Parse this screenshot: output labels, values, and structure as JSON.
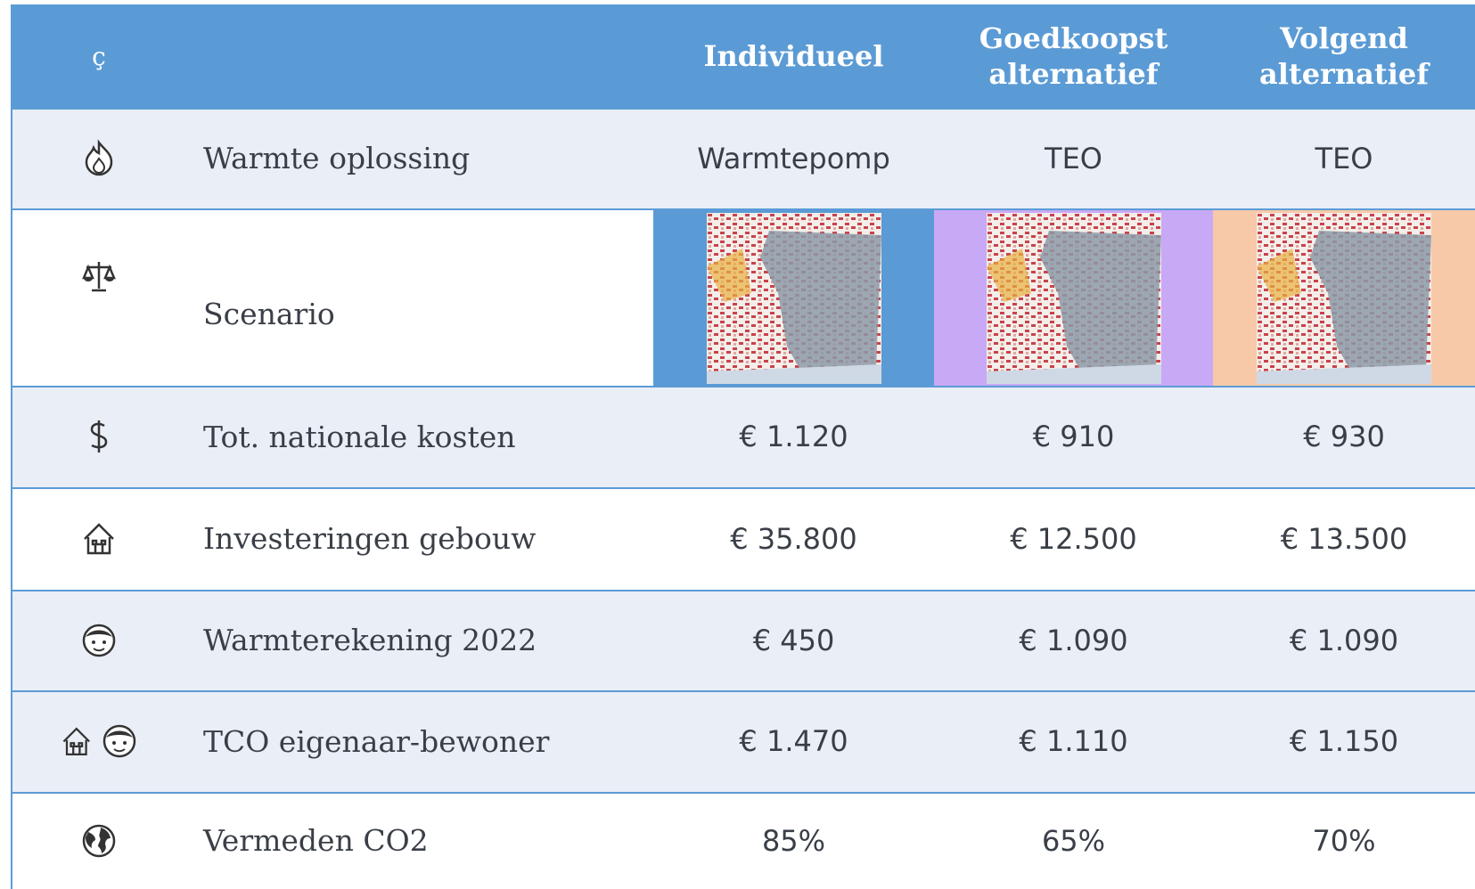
{
  "header": {
    "icon": "ç",
    "columns": [
      "Individueel",
      "Goedkoopst alternatief",
      "Volgend alternatief"
    ]
  },
  "rows": [
    {
      "label": "Warmte oplossing",
      "values": [
        "Warmtepomp",
        "TEO",
        "TEO"
      ]
    },
    {
      "label": "Scenario"
    },
    {
      "label": "Tot. nationale kosten",
      "values": [
        "€ 1.120",
        "€ 910",
        "€ 930"
      ]
    },
    {
      "label": "Investeringen gebouw",
      "values": [
        "€ 35.800",
        "€ 12.500",
        "€ 13.500"
      ]
    },
    {
      "label": "Warmterekening 2022",
      "values": [
        "€ 450",
        "€ 1.090",
        "€ 1.090"
      ]
    },
    {
      "label": "TCO eigenaar-bewoner",
      "values": [
        "€ 1.470",
        "€ 1.110",
        "€ 1.150"
      ]
    },
    {
      "label": "Vermeden CO2",
      "values": [
        "85%",
        "65%",
        "70%"
      ]
    }
  ]
}
